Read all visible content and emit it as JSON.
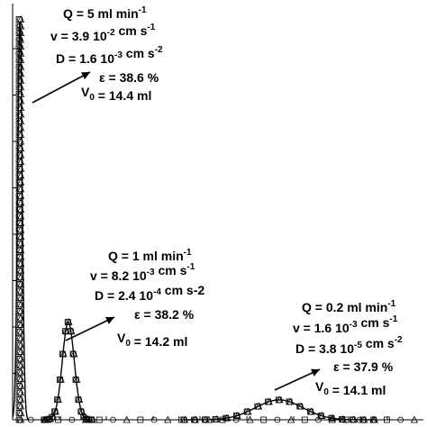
{
  "chart_data": {
    "type": "scatter",
    "xlim": [
      0,
      450
    ],
    "ylim": [
      0,
      450
    ],
    "grid": false,
    "series": [
      {
        "peak_x": 8,
        "peak_y": 440,
        "width": 2.5,
        "marker": "square",
        "annotation": [
          {
            "parts": [
              [
                "Q = 5 ml min",
                ""
              ],
              [
                "-1",
                "sup"
              ]
            ]
          },
          {
            "parts": [
              [
                "v = 3.9 10",
                ""
              ],
              [
                "-2",
                "sup"
              ],
              [
                " cm s",
                ""
              ],
              [
                "-1",
                "sup"
              ]
            ]
          },
          {
            "parts": [
              [
                "D = 1.6 10",
                ""
              ],
              [
                "-3",
                "sup"
              ],
              [
                " cm s",
                ""
              ],
              [
                "-2",
                "sup"
              ]
            ]
          },
          {
            "parts": [
              [
                "ε = 38.6 %",
                ""
              ]
            ]
          },
          {
            "parts": [
              [
                "V",
                ""
              ],
              [
                "0",
                "sub"
              ],
              [
                " = 14.4 ml",
                ""
              ]
            ]
          }
        ]
      },
      {
        "peak_x": 61,
        "peak_y": 108,
        "width": 6.5,
        "marker": "circle",
        "annotation": [
          {
            "parts": [
              [
                "Q = 1 ml min",
                ""
              ],
              [
                "-1",
                "sup"
              ]
            ]
          },
          {
            "parts": [
              [
                "v = 8.2 10",
                ""
              ],
              [
                "-3",
                "sup"
              ],
              [
                " cm s",
                ""
              ],
              [
                "-1",
                "sup"
              ]
            ]
          },
          {
            "parts": [
              [
                "D = 2.4 10",
                ""
              ],
              [
                "-4",
                "sup"
              ],
              [
                " cm s-2",
                ""
              ]
            ]
          },
          {
            "parts": [
              [
                "ε = 38.2 %",
                ""
              ]
            ]
          },
          {
            "parts": [
              [
                "V",
                ""
              ],
              [
                "0",
                "sub"
              ],
              [
                " = 14.2 ml",
                ""
              ]
            ]
          }
        ]
      },
      {
        "peak_x": 292,
        "peak_y": 22,
        "width": 26,
        "marker": "triangle",
        "annotation": [
          {
            "parts": [
              [
                "Q = 0.2 ml min",
                ""
              ],
              [
                "-1",
                "sup"
              ]
            ]
          },
          {
            "parts": [
              [
                "v = 1.6 10",
                ""
              ],
              [
                "-3",
                "sup"
              ],
              [
                " cm s",
                ""
              ],
              [
                "-1",
                "sup"
              ]
            ]
          },
          {
            "parts": [
              [
                "D = 3.8 10",
                ""
              ],
              [
                "-5",
                "sup"
              ],
              [
                " cm s",
                ""
              ],
              [
                "-2",
                "sup"
              ]
            ]
          },
          {
            "parts": [
              [
                "ε = 37.9 %",
                ""
              ]
            ]
          },
          {
            "parts": [
              [
                "V",
                ""
              ],
              [
                "0",
                "sub"
              ],
              [
                " = 14.1 ml",
                ""
              ]
            ]
          }
        ]
      }
    ]
  }
}
